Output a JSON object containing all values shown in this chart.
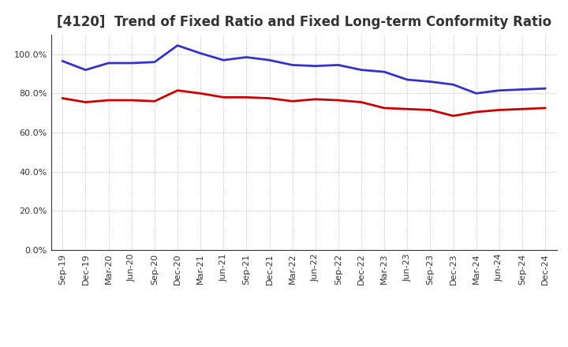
{
  "title": "[4120]  Trend of Fixed Ratio and Fixed Long-term Conformity Ratio",
  "x_labels": [
    "Sep-19",
    "Dec-19",
    "Mar-20",
    "Jun-20",
    "Sep-20",
    "Dec-20",
    "Mar-21",
    "Jun-21",
    "Sep-21",
    "Dec-21",
    "Mar-22",
    "Jun-22",
    "Sep-22",
    "Dec-22",
    "Mar-23",
    "Jun-23",
    "Sep-23",
    "Dec-23",
    "Mar-24",
    "Jun-24",
    "Sep-24",
    "Dec-24"
  ],
  "fixed_ratio": [
    96.5,
    92.0,
    95.5,
    95.5,
    96.0,
    104.5,
    100.5,
    97.0,
    98.5,
    97.0,
    94.5,
    94.0,
    94.5,
    92.0,
    91.0,
    87.0,
    86.0,
    84.5,
    80.0,
    81.5,
    82.0,
    82.5
  ],
  "fixed_lt_ratio": [
    77.5,
    75.5,
    76.5,
    76.5,
    76.0,
    81.5,
    80.0,
    78.0,
    78.0,
    77.5,
    76.0,
    77.0,
    76.5,
    75.5,
    72.5,
    72.0,
    71.5,
    68.5,
    70.5,
    71.5,
    72.0,
    72.5
  ],
  "fixed_ratio_color": "#3333CC",
  "fixed_lt_ratio_color": "#CC0000",
  "ylim": [
    0,
    110
  ],
  "yticks": [
    0,
    20,
    40,
    60,
    80,
    100
  ],
  "background_color": "#FFFFFF",
  "grid_color": "#999999",
  "title_fontsize": 12,
  "tick_fontsize": 8,
  "legend_fontsize": 9
}
